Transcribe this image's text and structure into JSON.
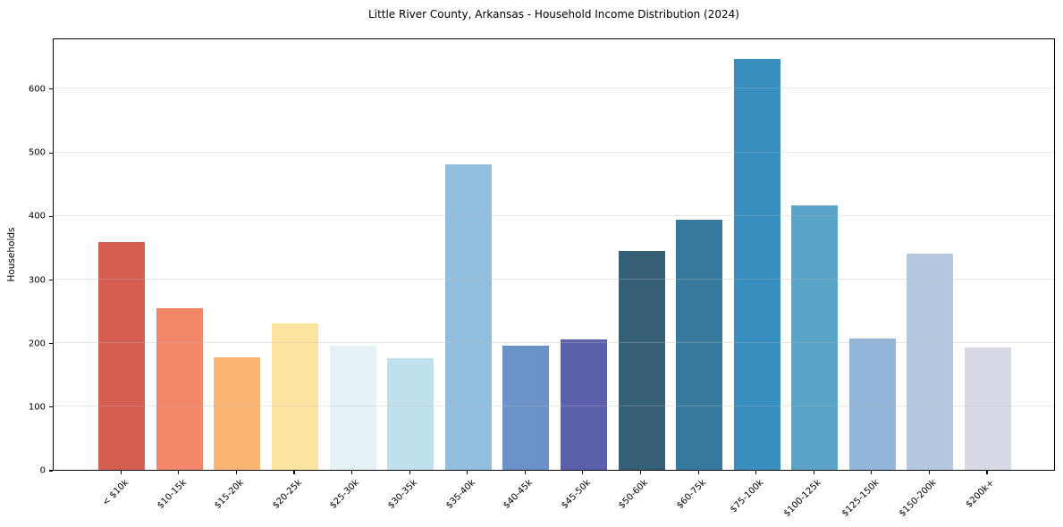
{
  "chart_data": {
    "type": "bar",
    "title": "Little River County, Arkansas - Household Income Distribution (2024)",
    "xlabel": "",
    "ylabel": "Households",
    "categories": [
      "< $10k",
      "$10-15k",
      "$15-20k",
      "$20-25k",
      "$25-30k",
      "$30-35k",
      "$35-40k",
      "$40-45k",
      "$45-50k",
      "$50-60k",
      "$60-75k",
      "$75-100k",
      "$100-125k",
      "$125-150k",
      "$150-200k",
      "$200k+"
    ],
    "values": [
      359,
      255,
      177,
      230,
      195,
      176,
      481,
      196,
      205,
      344,
      394,
      646,
      416,
      207,
      340,
      192
    ],
    "bar_colors": [
      "#d65d52",
      "#f2876a",
      "#f9b571",
      "#fce3a0",
      "#e4f2f5",
      "#bfe0ec",
      "#93bfde",
      "#6b92c8",
      "#5c5fab",
      "#365f78",
      "#36799c",
      "#388ebf",
      "#5aa3c9",
      "#93b5d9",
      "#b6c8df",
      "#d7d9e5"
    ],
    "ylim": [
      0,
      680
    ],
    "yticks": [
      0,
      100,
      200,
      300,
      400,
      500,
      600
    ],
    "grid": "horizontal-only, light gray, drawn over bars",
    "legend": "none",
    "x_tick_rotation_deg": 45
  }
}
